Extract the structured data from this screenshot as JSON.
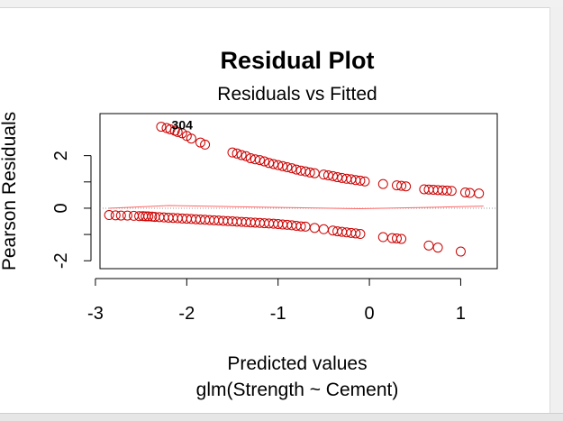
{
  "chart_data": {
    "type": "scatter",
    "title": "Residual Plot",
    "subtitle": "Residuals vs Fitted",
    "xlabel": "Predicted values",
    "xlabel2": "glm(Strength ~ Cement)",
    "ylabel": "Pearson Residuals",
    "xlim": [
      -2.95,
      1.4
    ],
    "ylim": [
      -2.3,
      3.6
    ],
    "x_ticks": [
      -3,
      -2,
      -1,
      0,
      1
    ],
    "x_tick_labels": [
      "-3",
      "-2",
      "-1",
      "0",
      "1"
    ],
    "y_ticks": [
      -2,
      0,
      2
    ],
    "y_tick_labels": [
      "-2",
      "0",
      "2"
    ],
    "marker_color": "#cc0000",
    "reference_line": {
      "y": 0,
      "style": "dotted",
      "color": "#999999"
    },
    "smooth_line_color": "#ff6666",
    "smooth_line": {
      "x": [
        -2.85,
        -2.2,
        -1.5,
        -0.8,
        -0.1,
        0.6,
        1.25
      ],
      "y": [
        0,
        0.1,
        0.06,
        0.02,
        -0.02,
        0.03,
        0.08
      ]
    },
    "annotations": [
      {
        "text": "304",
        "x": -2.05,
        "y": 3.2
      }
    ],
    "series": [
      {
        "x": [
          -2.28,
          -2.22,
          -2.18,
          -2.13,
          -2.1,
          -2.05,
          -2.0,
          -1.95,
          -1.85,
          -1.8,
          -1.5,
          -1.45,
          -1.4,
          -1.35,
          -1.3,
          -1.25,
          -1.2,
          -1.15,
          -1.1,
          -1.05,
          -1.0,
          -0.95,
          -0.9,
          -0.85,
          -0.8,
          -0.75,
          -0.7,
          -0.65,
          -0.6,
          -0.5,
          -0.45,
          -0.4,
          -0.35,
          -0.3,
          -0.25,
          -0.2,
          -0.15,
          -0.1,
          -0.05,
          0.15,
          0.3,
          0.35,
          0.4,
          0.6,
          0.65,
          0.7,
          0.75,
          0.8,
          0.85,
          0.9,
          1.05,
          1.1,
          1.2
        ],
        "y": [
          3.1,
          3.05,
          3.0,
          2.95,
          2.9,
          2.85,
          2.75,
          2.65,
          2.5,
          2.42,
          2.12,
          2.08,
          2.02,
          1.98,
          1.9,
          1.86,
          1.83,
          1.78,
          1.72,
          1.68,
          1.64,
          1.6,
          1.56,
          1.52,
          1.47,
          1.43,
          1.4,
          1.36,
          1.33,
          1.28,
          1.25,
          1.22,
          1.18,
          1.15,
          1.12,
          1.1,
          1.07,
          1.05,
          1.02,
          0.92,
          0.87,
          0.85,
          0.83,
          0.72,
          0.71,
          0.7,
          0.69,
          0.68,
          0.67,
          0.66,
          0.6,
          0.58,
          0.56
        ]
      },
      {
        "x": [
          -2.85,
          -2.78,
          -2.72,
          -2.65,
          -2.58,
          -2.52,
          -2.48,
          -2.45,
          -2.42,
          -2.38,
          -2.35,
          -2.3,
          -2.25,
          -2.2,
          -2.15,
          -2.1,
          -2.05,
          -2.0,
          -1.95,
          -1.9,
          -1.85,
          -1.8,
          -1.75,
          -1.7,
          -1.65,
          -1.6,
          -1.55,
          -1.5,
          -1.45,
          -1.4,
          -1.35,
          -1.3,
          -1.25,
          -1.2,
          -1.15,
          -1.1,
          -1.05,
          -1.0,
          -0.95,
          -0.9,
          -0.85,
          -0.8,
          -0.75,
          -0.7,
          -0.6,
          -0.5,
          -0.4,
          -0.35,
          -0.3,
          -0.25,
          -0.2,
          -0.15,
          -0.1,
          0.15,
          0.25,
          0.3,
          0.35,
          0.65,
          0.75,
          1.0
        ],
        "y": [
          -0.26,
          -0.27,
          -0.28,
          -0.28,
          -0.29,
          -0.3,
          -0.3,
          -0.31,
          -0.31,
          -0.32,
          -0.33,
          -0.34,
          -0.35,
          -0.36,
          -0.37,
          -0.38,
          -0.39,
          -0.4,
          -0.41,
          -0.42,
          -0.43,
          -0.44,
          -0.45,
          -0.46,
          -0.47,
          -0.48,
          -0.49,
          -0.5,
          -0.51,
          -0.52,
          -0.53,
          -0.54,
          -0.55,
          -0.56,
          -0.57,
          -0.58,
          -0.59,
          -0.6,
          -0.62,
          -0.63,
          -0.65,
          -0.67,
          -0.69,
          -0.7,
          -0.75,
          -0.8,
          -0.85,
          -0.88,
          -0.9,
          -0.92,
          -0.94,
          -0.96,
          -0.98,
          -1.1,
          -1.14,
          -1.15,
          -1.17,
          -1.42,
          -1.5,
          -1.65
        ]
      }
    ]
  }
}
